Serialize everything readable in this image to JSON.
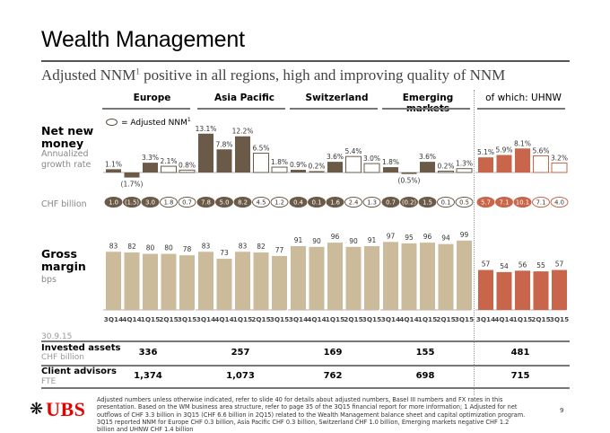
{
  "header": {
    "title": "Wealth Management",
    "subtitle_pre": "Adjusted NNM",
    "subtitle_sup": "1",
    "subtitle_post": " positive in all regions, high and improving quality of NNM"
  },
  "columns": [
    "Europe",
    "Asia Pacific",
    "Switzerland",
    "Emerging markets",
    "of which: UHNW"
  ],
  "legend": {
    "label": "= Adjusted NNM",
    "sup": "1"
  },
  "row_labels": {
    "nnm_title": "Net new money",
    "nnm_sub": "Annualized growth rate",
    "chf": "CHF billion",
    "gm_title": "Gross margin",
    "gm_sub": "bps"
  },
  "colors": {
    "brown": "#6b5a47",
    "tan": "#cbbb9b",
    "uhnw": "#c8654a",
    "uhnw_light": "#c8654a"
  },
  "chart_data": [
    {
      "type": "bar",
      "title": "Net new money – annualized growth rate",
      "categories": [
        "3Q14",
        "4Q14",
        "1Q15",
        "2Q15",
        "3Q15"
      ],
      "ylabel": "%",
      "note": "2Q15 and 3Q15 shown as outlined bars = Adjusted NNM",
      "adjusted": [
        false,
        false,
        false,
        true,
        true
      ],
      "series": [
        {
          "name": "Europe",
          "values": [
            1.1,
            -1.7,
            3.3,
            2.1,
            0.8
          ],
          "labels": [
            "1.1%",
            "(1.7%)",
            "3.3%",
            "2.1%",
            "0.8%"
          ],
          "chf": [
            "1.0",
            "(1.5)",
            "3.0",
            "1.8",
            "0.7"
          ]
        },
        {
          "name": "Asia Pacific",
          "values": [
            13.1,
            7.8,
            12.2,
            6.5,
            1.8
          ],
          "labels": [
            "13.1%",
            "7.8%",
            "12.2%",
            "6.5%",
            "1.8%"
          ],
          "chf": [
            "7.8",
            "5.0",
            "8.2",
            "4.5",
            "1.2"
          ]
        },
        {
          "name": "Switzerland",
          "values": [
            0.9,
            0.2,
            3.6,
            5.4,
            3.0
          ],
          "labels": [
            "0.9%",
            "0.2%",
            "3.6%",
            "5.4%",
            "3.0%"
          ],
          "chf": [
            "0.4",
            "0.1",
            "1.6",
            "2.4",
            "1.3"
          ]
        },
        {
          "name": "Emerging markets",
          "values": [
            1.8,
            -0.5,
            3.6,
            0.2,
            1.3
          ],
          "labels": [
            "1.8%",
            "(0.5%)",
            "3.6%",
            "0.2%",
            "1.3%"
          ],
          "chf": [
            "0.7",
            "(0.2)",
            "1.5",
            "0.1",
            "0.5"
          ]
        },
        {
          "name": "of which: UHNW",
          "values": [
            5.1,
            5.9,
            8.1,
            5.6,
            3.2
          ],
          "labels": [
            "5.1%",
            "5.9%",
            "8.1%",
            "5.6%",
            "3.2%"
          ],
          "chf": [
            "5.7",
            "7.1",
            "10.1",
            "7.1",
            "4.0"
          ]
        }
      ]
    },
    {
      "type": "bar",
      "title": "Gross margin",
      "ylabel": "bps",
      "categories": [
        "3Q14",
        "4Q14",
        "1Q15",
        "2Q15",
        "3Q15"
      ],
      "series": [
        {
          "name": "Europe",
          "values": [
            83,
            82,
            80,
            80,
            78
          ]
        },
        {
          "name": "Asia Pacific",
          "values": [
            83,
            73,
            83,
            82,
            77
          ]
        },
        {
          "name": "Switzerland",
          "values": [
            91,
            90,
            96,
            90,
            91
          ]
        },
        {
          "name": "Emerging markets",
          "values": [
            97,
            95,
            96,
            94,
            99
          ]
        },
        {
          "name": "of which: UHNW",
          "values": [
            57,
            54,
            56,
            55,
            57
          ]
        }
      ]
    }
  ],
  "table": {
    "date": "30.9.15",
    "rows": [
      {
        "label": "Invested assets",
        "unit": "CHF billion",
        "values": [
          "336",
          "257",
          "169",
          "155",
          "481"
        ]
      },
      {
        "label": "Client advisors",
        "unit": "FTE",
        "values": [
          "1,374",
          "1,073",
          "762",
          "698",
          "715"
        ]
      }
    ]
  },
  "footer": {
    "logo": "UBS",
    "footnote": "Adjusted numbers unless otherwise indicated, refer to slide 40 for details about adjusted numbers, Basel III numbers and FX rates in this presentation. Based on the WM business area structure, refer to page 35 of the 3Q15 financial report for more information; 1 Adjusted for net outflows of CHF 3.3 billion in 3Q15 (CHF 6.6 billion in 2Q15) related to the Wealth Management balance sheet and capital optimization program. 3Q15 reported NNM for Europe CHF 0.3 billion, Asia Pacific CHF 0.3 billion, Switzerland CHF 1.0 billion, Emerging markets negative CHF 1.2 billion and UHNW CHF 1.4 billion",
    "page": "9"
  }
}
